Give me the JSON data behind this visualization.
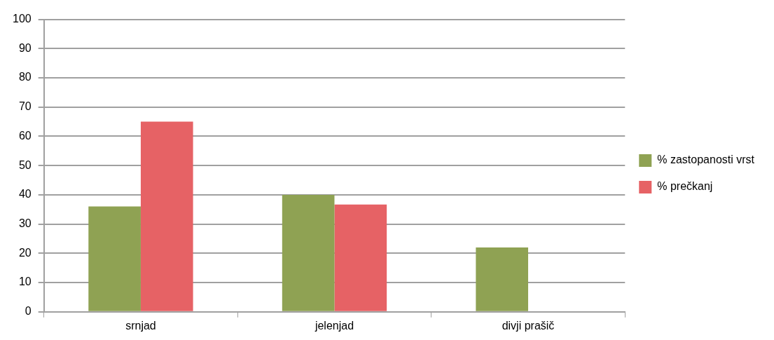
{
  "chart_data": {
    "type": "bar",
    "categories": [
      "srnjad",
      "jelenjad",
      "divji prašič"
    ],
    "series": [
      {
        "name": "% zastopanosti vrst",
        "color": "#8fa253",
        "values": [
          36,
          40,
          22
        ]
      },
      {
        "name": "% prečkanj",
        "color": "#e66265",
        "values": [
          65,
          36.7,
          null
        ]
      }
    ],
    "ylim": [
      0,
      100
    ],
    "yticks": [
      0,
      10,
      20,
      30,
      40,
      50,
      60,
      70,
      80,
      90,
      100
    ],
    "grid": "y",
    "legend": "right"
  }
}
